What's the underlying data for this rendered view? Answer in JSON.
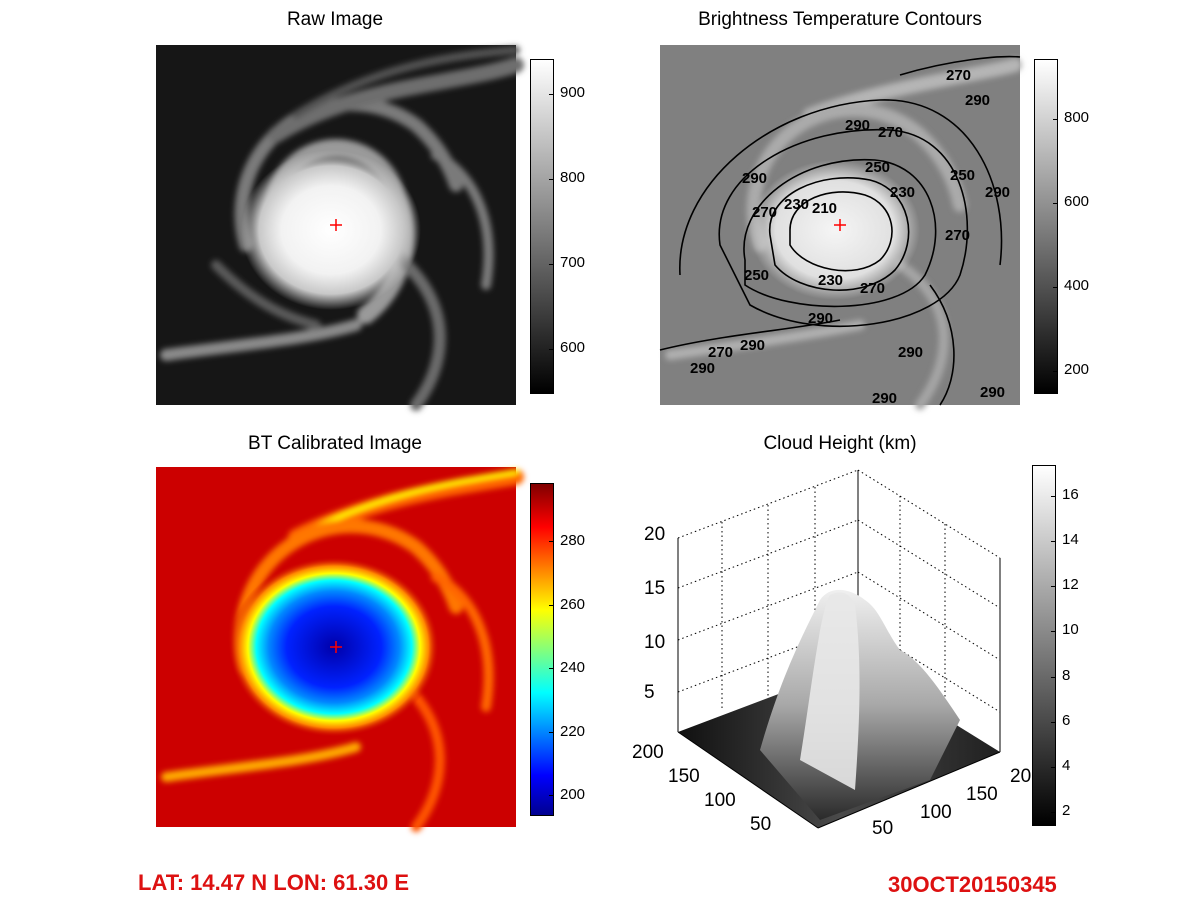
{
  "footer": {
    "location": "LAT: 14.47 N  LON: 61.30 E",
    "datetime": "30OCT20150345",
    "color": "#dd1111"
  },
  "colors": {
    "center_marker": "#ff0000"
  },
  "chart_data": [
    {
      "type": "heatmap",
      "title": "Raw Image",
      "colormap": "gray",
      "colorbar": {
        "ticks": [
          600,
          700,
          800,
          900
        ],
        "range": [
          550,
          940
        ]
      },
      "center_marker": "red plus"
    },
    {
      "type": "heatmap",
      "title": "Brightness Temperature Contours",
      "colormap": "gray",
      "colorbar": {
        "ticks": [
          200,
          400,
          600,
          800
        ],
        "range": [
          150,
          950
        ]
      },
      "contour_levels": [
        "210",
        "230",
        "250",
        "270",
        "290"
      ],
      "center_marker": "red plus"
    },
    {
      "type": "heatmap",
      "title": "BT Calibrated Image",
      "colormap": "jet",
      "colorbar": {
        "ticks": [
          200,
          220,
          240,
          260,
          280
        ],
        "range": [
          193,
          298
        ]
      },
      "center_marker": "red plus"
    },
    {
      "type": "surface",
      "title": "Cloud Height (km)",
      "colormap": "gray",
      "zlim": [
        0,
        20
      ],
      "z_ticks": [
        "5",
        "10",
        "15",
        "20"
      ],
      "x_ticks": [
        "50",
        "100",
        "150",
        "20"
      ],
      "y_ticks": [
        "50",
        "100",
        "150",
        "200"
      ],
      "grid": "on",
      "colorbar": {
        "ticks": [
          2,
          4,
          6,
          8,
          10,
          12,
          14,
          16
        ],
        "range": [
          0.8,
          16.8
        ]
      }
    }
  ]
}
